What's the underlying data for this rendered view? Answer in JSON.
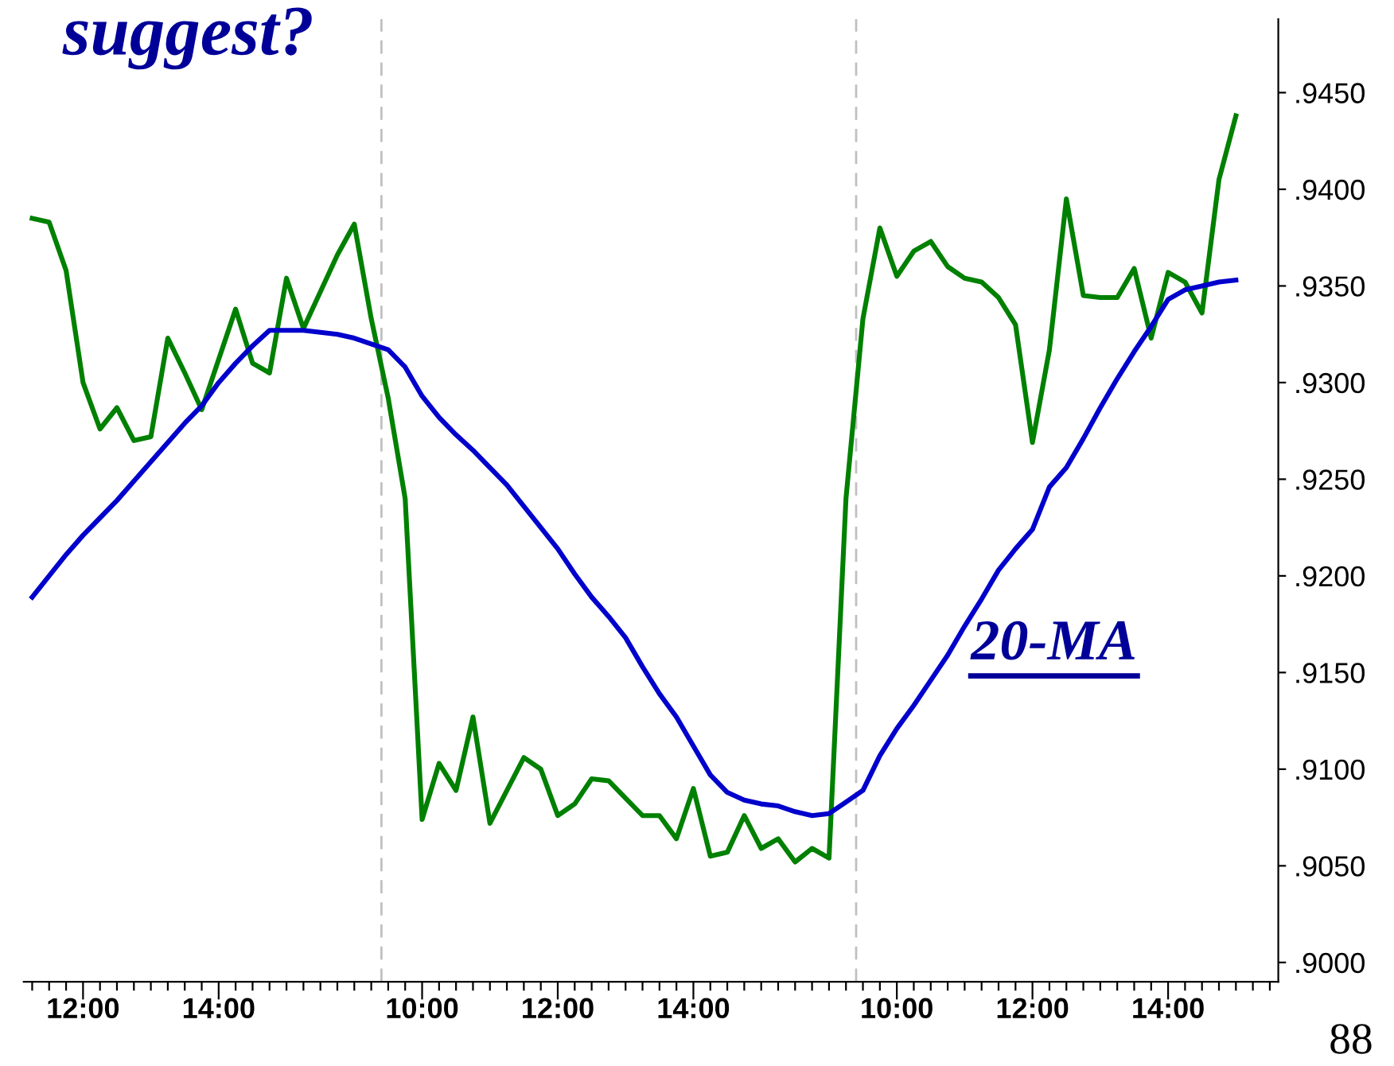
{
  "chart_data": {
    "type": "line",
    "title": "suggest?",
    "annotations": [
      "88"
    ],
    "categories": [
      null,
      null,
      null,
      "12:00",
      null,
      null,
      null,
      null,
      null,
      null,
      null,
      "14:00",
      null,
      null,
      null,
      null,
      null,
      null,
      null,
      null,
      null,
      null,
      null,
      "10:00",
      null,
      null,
      null,
      null,
      null,
      null,
      null,
      "12:00",
      null,
      null,
      null,
      null,
      null,
      null,
      null,
      "14:00",
      null,
      null,
      null,
      null,
      null,
      null,
      null,
      null,
      null,
      null,
      null,
      "10:00",
      null,
      null,
      null,
      null,
      null,
      null,
      null,
      "12:00",
      null,
      null,
      null,
      null,
      null,
      null,
      null,
      "14:00",
      null,
      null,
      null,
      null,
      null,
      null
    ],
    "series": [
      {
        "color": "#008000",
        "values": [
          0.9385,
          0.9383,
          0.9358,
          0.93,
          0.9276,
          0.9287,
          0.927,
          0.9272,
          0.9323,
          0.9305,
          0.9286,
          0.9312,
          0.9338,
          0.931,
          0.9305,
          0.9354,
          0.9328,
          0.9347,
          0.9366,
          0.9382,
          0.9333,
          0.9292,
          0.924,
          0.9074,
          0.9103,
          0.9089,
          0.9127,
          0.9072,
          0.9089,
          0.9106,
          0.91,
          0.9076,
          0.9082,
          0.9095,
          0.9094,
          0.9085,
          0.9076,
          0.9076,
          0.9064,
          0.909,
          0.9055,
          0.9057,
          0.9076,
          0.9059,
          0.9064,
          0.9052,
          0.9059,
          0.9054,
          0.924,
          0.9333,
          0.938,
          0.9355,
          0.9368,
          0.9373,
          0.936,
          0.9354,
          0.9352,
          0.9344,
          0.933,
          0.9269,
          0.9317,
          0.9395,
          0.9345,
          0.9344,
          0.9344,
          0.9359,
          0.9323,
          0.9357,
          0.9352,
          0.9336,
          0.9405,
          0.9438,
          null,
          null
        ]
      },
      {
        "name": "20-MA",
        "color": "#0000cc",
        "values": [
          0.9189,
          0.92,
          0.9211,
          0.9221,
          0.923,
          0.9239,
          0.9249,
          0.9259,
          0.9269,
          0.9279,
          0.9288,
          0.93,
          0.931,
          0.9319,
          0.9327,
          0.9327,
          0.9327,
          0.9326,
          0.9325,
          0.9323,
          0.932,
          0.9317,
          0.9308,
          0.9293,
          0.9282,
          0.9273,
          0.9265,
          0.9256,
          0.9247,
          0.9236,
          0.9225,
          0.9214,
          0.9201,
          0.9189,
          0.9179,
          0.9168,
          0.9153,
          0.9139,
          0.9127,
          0.9112,
          0.9097,
          0.9088,
          0.9084,
          0.9082,
          0.9081,
          0.9078,
          0.9076,
          0.9077,
          0.9083,
          0.9089,
          0.9107,
          0.9121,
          0.9133,
          0.9146,
          0.9159,
          0.9174,
          0.9188,
          0.9203,
          0.9214,
          0.9224,
          0.9246,
          0.9256,
          0.9271,
          0.9287,
          0.9302,
          0.9316,
          0.9329,
          0.9343,
          0.9348,
          0.935,
          0.9352,
          0.9353,
          null,
          null
        ]
      }
    ],
    "ylim": [
      0.899,
      0.9488
    ],
    "yticks": [
      {
        "value": 0.9,
        "label": ".9000"
      },
      {
        "value": 0.905,
        "label": ".9050"
      },
      {
        "value": 0.91,
        "label": ".9100"
      },
      {
        "value": 0.915,
        "label": ".9150"
      },
      {
        "value": 0.92,
        "label": ".9200"
      },
      {
        "value": 0.925,
        "label": ".9250"
      },
      {
        "value": 0.93,
        "label": ".9300"
      },
      {
        "value": 0.935,
        "label": ".9350"
      },
      {
        "value": 0.94,
        "label": ".9400"
      },
      {
        "value": 0.945,
        "label": ".9450"
      }
    ],
    "grid": false,
    "legend": false,
    "marker": "none",
    "line_style": "solid"
  }
}
